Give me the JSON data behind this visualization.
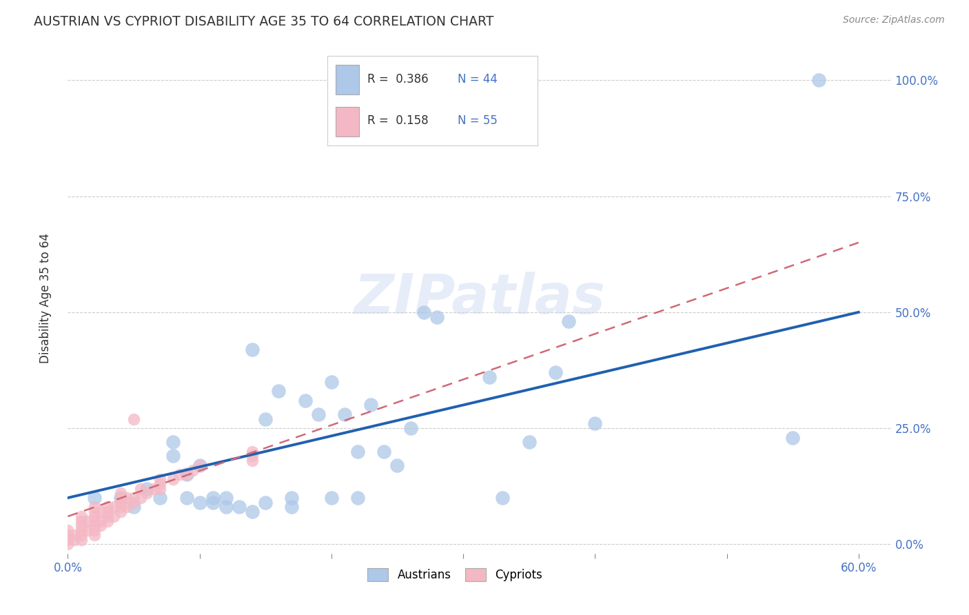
{
  "title": "AUSTRIAN VS CYPRIOT DISABILITY AGE 35 TO 64 CORRELATION CHART",
  "source": "Source: ZipAtlas.com",
  "ylabel": "Disability Age 35 to 64",
  "xlim": [
    0.0,
    0.625
  ],
  "ylim": [
    -0.02,
    1.08
  ],
  "ytick_positions": [
    0.0,
    0.25,
    0.5,
    0.75,
    1.0
  ],
  "yticklabels": [
    "0.0%",
    "25.0%",
    "50.0%",
    "75.0%",
    "100.0%"
  ],
  "xtick_positions": [
    0.0,
    0.1,
    0.2,
    0.3,
    0.4,
    0.5,
    0.6
  ],
  "xticklabels": [
    "0.0%",
    "",
    "",
    "",
    "",
    "",
    "60.0%"
  ],
  "legend_R_blue": "0.386",
  "legend_N_blue": "44",
  "legend_R_pink": "0.158",
  "legend_N_pink": "55",
  "watermark": "ZIPatlas",
  "blue_color": "#adc8e8",
  "pink_color": "#f4b8c4",
  "line_blue": "#2060b0",
  "line_pink": "#d06878",
  "blue_line_x0": 0.0,
  "blue_line_y0": 0.1,
  "blue_line_x1": 0.6,
  "blue_line_y1": 0.5,
  "pink_line_x0": 0.0,
  "pink_line_y0": 0.06,
  "pink_line_x1": 0.6,
  "pink_line_y1": 0.65,
  "austrians_x": [
    0.57,
    0.55,
    0.4,
    0.38,
    0.37,
    0.35,
    0.33,
    0.32,
    0.28,
    0.27,
    0.26,
    0.25,
    0.24,
    0.23,
    0.22,
    0.22,
    0.21,
    0.2,
    0.2,
    0.19,
    0.18,
    0.17,
    0.17,
    0.16,
    0.15,
    0.15,
    0.14,
    0.14,
    0.13,
    0.12,
    0.12,
    0.11,
    0.11,
    0.1,
    0.1,
    0.09,
    0.09,
    0.08,
    0.08,
    0.07,
    0.06,
    0.05,
    0.04,
    0.02
  ],
  "austrians_y": [
    1.0,
    0.23,
    0.26,
    0.48,
    0.37,
    0.22,
    0.1,
    0.36,
    0.49,
    0.5,
    0.25,
    0.17,
    0.2,
    0.3,
    0.1,
    0.2,
    0.28,
    0.35,
    0.1,
    0.28,
    0.31,
    0.08,
    0.1,
    0.33,
    0.27,
    0.09,
    0.42,
    0.07,
    0.08,
    0.08,
    0.1,
    0.09,
    0.1,
    0.17,
    0.09,
    0.15,
    0.1,
    0.22,
    0.19,
    0.1,
    0.12,
    0.08,
    0.1,
    0.1
  ],
  "cypriots_x": [
    0.0,
    0.0,
    0.0,
    0.0,
    0.005,
    0.005,
    0.01,
    0.01,
    0.01,
    0.01,
    0.01,
    0.01,
    0.015,
    0.015,
    0.02,
    0.02,
    0.02,
    0.02,
    0.02,
    0.02,
    0.02,
    0.025,
    0.025,
    0.025,
    0.03,
    0.03,
    0.03,
    0.03,
    0.035,
    0.035,
    0.04,
    0.04,
    0.04,
    0.04,
    0.04,
    0.045,
    0.045,
    0.05,
    0.05,
    0.05,
    0.055,
    0.055,
    0.06,
    0.065,
    0.07,
    0.07,
    0.07,
    0.08,
    0.085,
    0.09,
    0.095,
    0.1,
    0.14,
    0.14,
    0.14
  ],
  "cypriots_y": [
    0.0,
    0.01,
    0.02,
    0.03,
    0.01,
    0.02,
    0.01,
    0.02,
    0.03,
    0.04,
    0.05,
    0.06,
    0.03,
    0.05,
    0.02,
    0.03,
    0.04,
    0.05,
    0.06,
    0.07,
    0.08,
    0.04,
    0.05,
    0.07,
    0.05,
    0.06,
    0.07,
    0.08,
    0.06,
    0.08,
    0.07,
    0.08,
    0.09,
    0.1,
    0.11,
    0.08,
    0.1,
    0.09,
    0.1,
    0.27,
    0.1,
    0.12,
    0.11,
    0.12,
    0.12,
    0.13,
    0.14,
    0.14,
    0.15,
    0.15,
    0.16,
    0.17,
    0.18,
    0.19,
    0.2
  ]
}
